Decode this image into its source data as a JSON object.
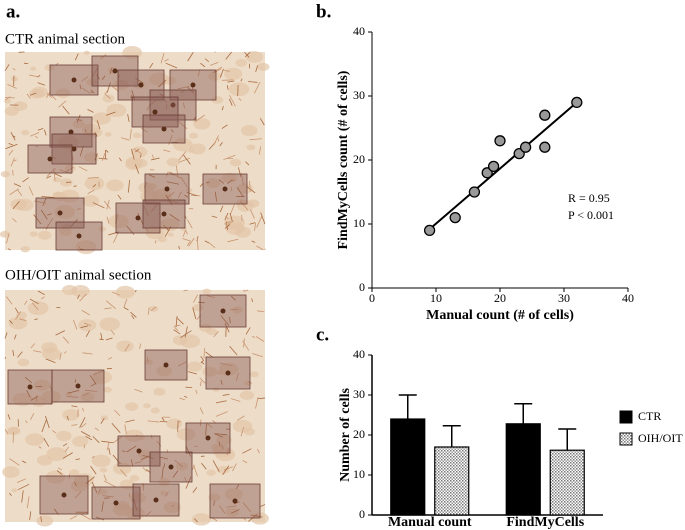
{
  "panel_a": {
    "label": "a.",
    "sections": [
      "CTR animal section",
      "OIH/OIT animal section"
    ]
  },
  "chart_data": [
    {
      "type": "scatter",
      "label": "b.",
      "xlabel": "Manual count (# of cells)",
      "ylabel": "FindMyCells count (# of cells)",
      "x": [
        9,
        13,
        16,
        18,
        19,
        20,
        23,
        24,
        27,
        27,
        32
      ],
      "y": [
        9,
        11,
        15,
        18,
        19,
        23,
        21,
        22,
        27,
        22,
        29
      ],
      "color": "#999999",
      "fit": {
        "x": [
          9,
          32
        ],
        "y": [
          9.2,
          29
        ]
      },
      "annotations": [
        "R = 0.95",
        "P < 0.001"
      ],
      "xlim": [
        0,
        40
      ],
      "xticks": [
        0,
        10,
        20,
        30,
        40
      ],
      "ylim": [
        0,
        40
      ],
      "yticks": [
        0,
        10,
        20,
        30,
        40
      ]
    },
    {
      "type": "bar",
      "label": "c.",
      "ylabel": "Number of cells",
      "categories": [
        "Manual count",
        "FindMyCells"
      ],
      "series": [
        {
          "name": "CTR",
          "color": "#000000",
          "values": [
            24,
            22.8
          ],
          "errors": [
            6,
            5
          ]
        },
        {
          "name": "OIH/OIT",
          "color": "#bbbbbb",
          "pattern": "dots",
          "values": [
            17,
            16.2
          ],
          "errors": [
            5.3,
            5.3
          ]
        }
      ],
      "ylim": [
        0,
        40
      ],
      "yticks": [
        0,
        10,
        20,
        30,
        40
      ],
      "legend": "right"
    }
  ]
}
